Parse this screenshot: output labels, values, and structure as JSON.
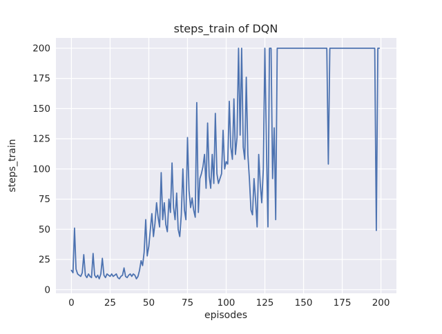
{
  "chart_data": {
    "type": "line",
    "title": "steps_train of DQN",
    "xlabel": "episodes",
    "ylabel": "steps_train",
    "xlim": [
      -10,
      210
    ],
    "ylim": [
      -3,
      208.5
    ],
    "xticks": [
      0,
      25,
      50,
      75,
      100,
      125,
      150,
      175,
      200
    ],
    "yticks": [
      0,
      25,
      50,
      75,
      100,
      125,
      150,
      175,
      200
    ],
    "grid": true,
    "legend": false,
    "line_color": "#4c72b0",
    "plot_bg": "#eaeaf2",
    "grid_color": "#ffffff",
    "text_color": "#262626",
    "series": [
      {
        "name": "steps_train",
        "x_start": 0,
        "x_step": 1,
        "values": [
          16,
          14,
          51,
          17,
          13,
          12,
          11,
          14,
          29,
          12,
          10,
          13,
          11,
          10,
          30,
          12,
          10,
          12,
          9,
          13,
          26,
          12,
          10,
          13,
          12,
          11,
          13,
          11,
          12,
          13,
          10,
          9,
          11,
          12,
          18,
          11,
          10,
          12,
          13,
          11,
          13,
          12,
          9,
          11,
          16,
          24,
          20,
          31,
          58,
          28,
          36,
          50,
          63,
          44,
          55,
          72,
          60,
          52,
          97,
          58,
          72,
          54,
          48,
          75,
          64,
          105,
          68,
          58,
          80,
          50,
          44,
          62,
          100,
          66,
          58,
          126,
          82,
          68,
          76,
          66,
          60,
          155,
          64,
          92,
          96,
          102,
          112,
          84,
          138,
          94,
          84,
          112,
          88,
          146,
          96,
          88,
          92,
          96,
          132,
          100,
          106,
          104,
          156,
          118,
          108,
          158,
          112,
          126,
          200,
          128,
          200,
          118,
          108,
          176,
          112,
          92,
          66,
          62,
          92,
          74,
          52,
          112,
          88,
          72,
          100,
          200,
          118,
          52,
          200,
          200,
          92,
          134,
          58,
          200,
          200,
          200,
          200,
          200,
          200,
          200,
          200,
          200,
          200,
          200,
          200,
          200,
          200,
          200,
          200,
          200,
          200,
          200,
          200,
          200,
          200,
          200,
          200,
          200,
          200,
          200,
          200,
          200,
          200,
          200,
          200,
          200,
          104,
          200,
          200,
          200,
          200,
          200,
          200,
          200,
          200,
          200,
          200,
          200,
          200,
          200,
          200,
          200,
          200,
          200,
          200,
          200,
          200,
          200,
          200,
          200,
          200,
          200,
          200,
          200,
          200,
          200,
          200,
          49,
          200,
          200
        ]
      }
    ]
  }
}
